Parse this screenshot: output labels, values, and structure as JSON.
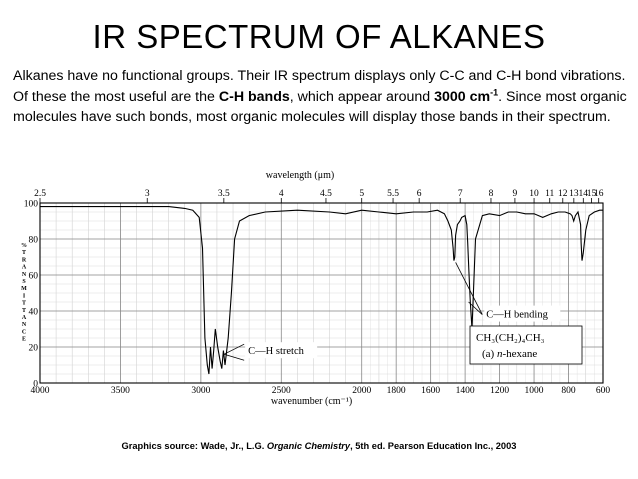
{
  "slide": {
    "title": "IR SPECTRUM OF ALKANES",
    "intro": {
      "part1": "Alkanes have no functional groups. Their IR spectrum displays only C-C and C-H bond vibrations. Of these the most useful are the ",
      "bold1": "C-H bands",
      "part2": ", which appear around ",
      "bold2": "3000 cm",
      "bold2_sup": "-1",
      "part3": ". Since most organic molecules have such bonds, most organic molecules will display those bands in their spectrum."
    },
    "source": {
      "prefix": "Graphics source: Wade, Jr., L.G. ",
      "book": "Organic Chemistry",
      "suffix": ", 5th ed. Pearson Education Inc., 2003"
    }
  },
  "chart_data": {
    "type": "line",
    "top_axis_label": "wavelength (μm)",
    "top_ticks": [
      "2.5",
      "3",
      "3.5",
      "4",
      "4.5",
      "5",
      "5.5",
      "6",
      "7",
      "8",
      "9",
      "10",
      "11",
      "12",
      "13",
      "14",
      "15",
      "16"
    ],
    "xlabel": "wavenumber (cm⁻¹)",
    "x_ticks": [
      "4000",
      "3500",
      "3000",
      "2500",
      "2000",
      "1800",
      "1600",
      "1400",
      "1200",
      "1000",
      "800",
      "600"
    ],
    "ylabel": "% TRANSMITTANCE",
    "y_ticks": [
      "0",
      "20",
      "40",
      "60",
      "80",
      "100"
    ],
    "ylim": [
      0,
      100
    ],
    "grid": true,
    "annotations": {
      "ch_stretch": "C—H stretch",
      "ch_bending": "C—H bending"
    },
    "compound": {
      "formula": "CH₃(CH₂)₄CH₃",
      "name_prefix": "(a) ",
      "name_italic": "n",
      "name_suffix": "-hexane"
    },
    "series": [
      {
        "x": [
          4000,
          3800,
          3600,
          3400,
          3200,
          3100,
          3050,
          3010,
          2990,
          2975,
          2960,
          2950,
          2940,
          2930,
          2920,
          2910,
          2895,
          2880,
          2870,
          2860,
          2850,
          2830,
          2810,
          2790,
          2760,
          2700,
          2600,
          2400,
          2200,
          2100,
          2000,
          1900,
          1800,
          1700,
          1620,
          1560,
          1520,
          1500,
          1480,
          1470,
          1465,
          1460,
          1455,
          1445,
          1430,
          1420,
          1400,
          1390,
          1385,
          1378,
          1370,
          1360,
          1340,
          1300,
          1260,
          1200,
          1150,
          1100,
          1050,
          1000,
          950,
          900,
          860,
          820,
          790,
          780,
          770,
          760,
          745,
          730,
          727,
          722,
          715,
          700,
          680,
          650,
          620,
          600
        ],
        "y": [
          98,
          98,
          98,
          98,
          98,
          97,
          96,
          92,
          75,
          25,
          10,
          5,
          20,
          8,
          18,
          30,
          20,
          12,
          8,
          18,
          10,
          25,
          50,
          80,
          90,
          93,
          95,
          96,
          95,
          94,
          96,
          95,
          94,
          95,
          95,
          96,
          94,
          90,
          85,
          75,
          68,
          70,
          82,
          88,
          90,
          92,
          93,
          88,
          78,
          62,
          45,
          30,
          80,
          93,
          94,
          93,
          95,
          95,
          94,
          94,
          92,
          94,
          95,
          95,
          94,
          93,
          90,
          93,
          95,
          88,
          78,
          68,
          72,
          85,
          93,
          95,
          96,
          96
        ]
      }
    ]
  }
}
